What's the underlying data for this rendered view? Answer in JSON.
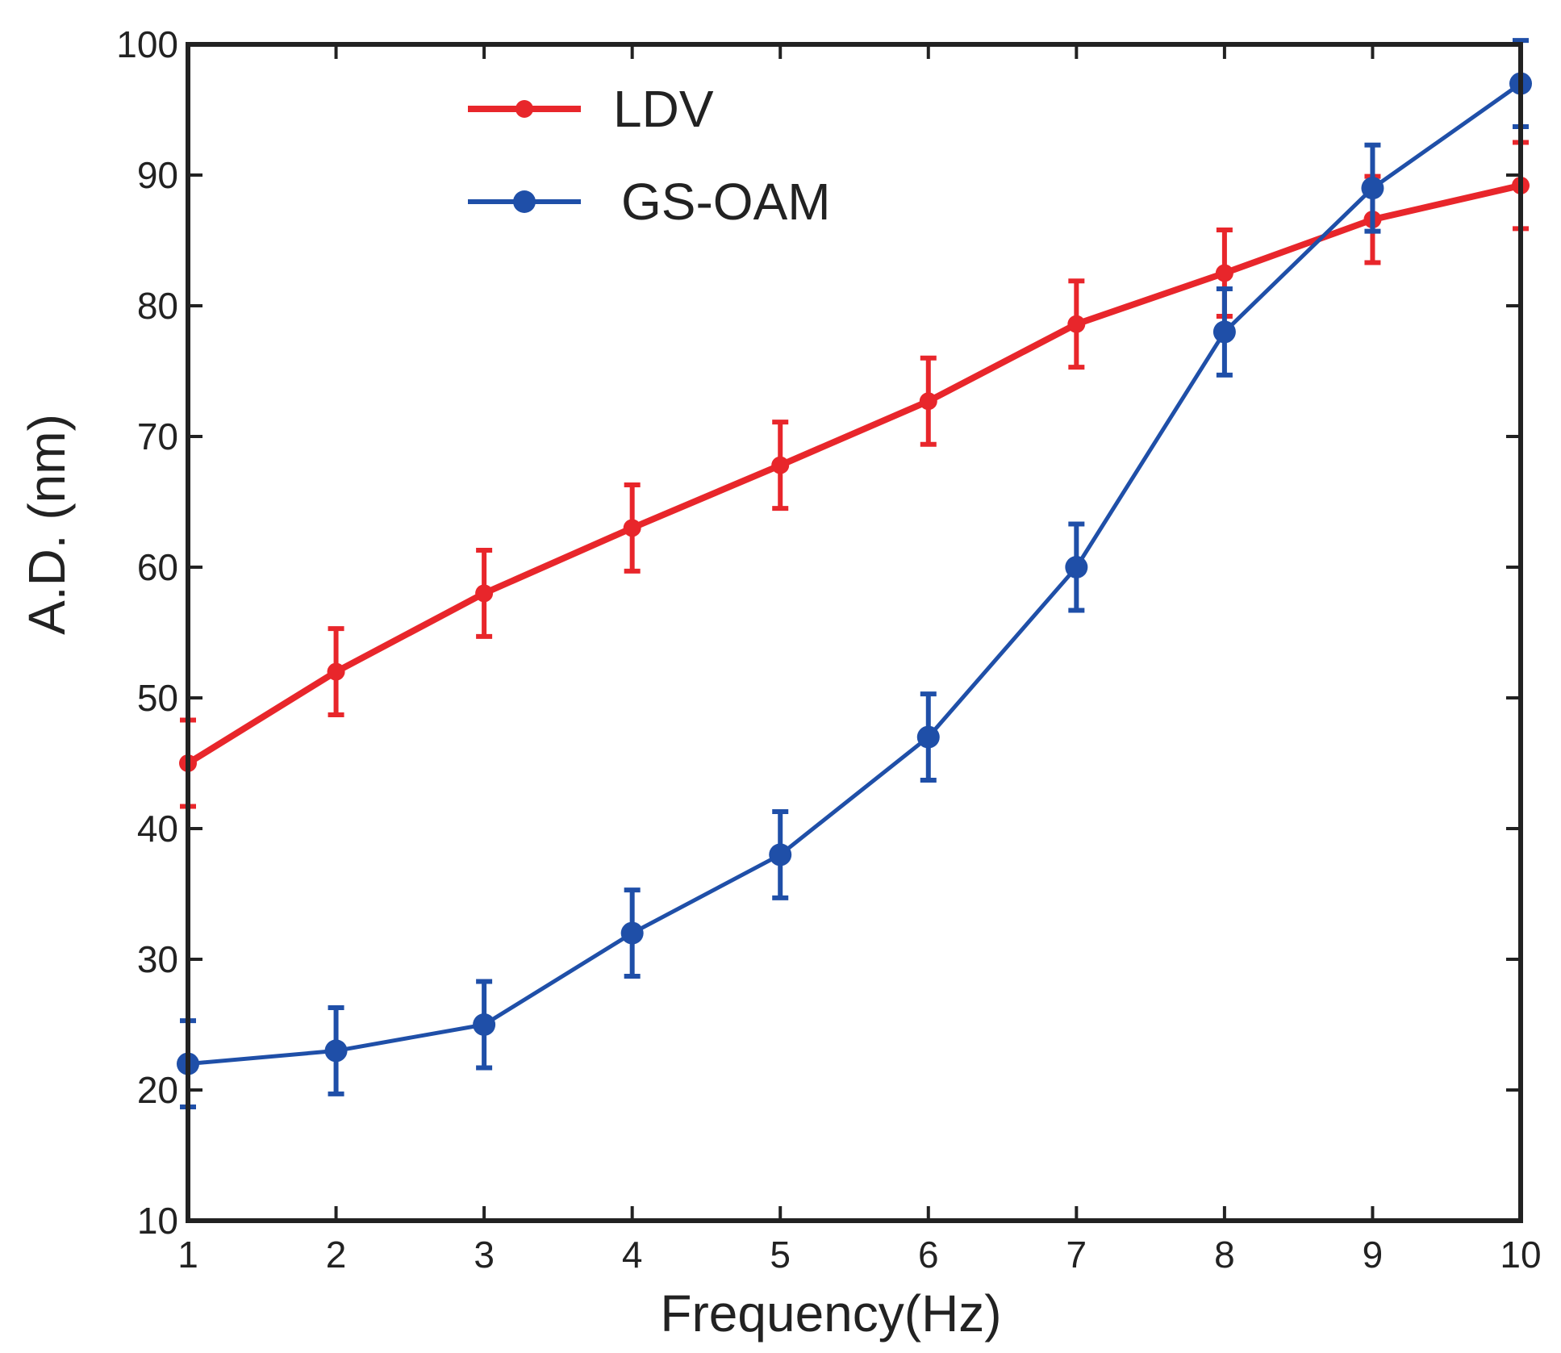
{
  "chart_data": {
    "type": "line",
    "title": "",
    "xlabel": "Frequency(Hz)",
    "ylabel": "A.D. (nm)",
    "xlim": [
      1,
      10
    ],
    "ylim": [
      10,
      100
    ],
    "xticks": [
      1,
      2,
      3,
      4,
      5,
      6,
      7,
      8,
      9,
      10
    ],
    "yticks": [
      10,
      20,
      30,
      40,
      50,
      60,
      70,
      80,
      90,
      100
    ],
    "grid": false,
    "legend_position": "top-center",
    "x": [
      1,
      2,
      3,
      4,
      5,
      6,
      7,
      8,
      9,
      10
    ],
    "series": [
      {
        "name": "LDV",
        "color": "#e8262b",
        "values": [
          45,
          52,
          58,
          63,
          67.8,
          72.7,
          78.6,
          82.5,
          86.6,
          89.2
        ],
        "error": [
          3.3,
          3.3,
          3.3,
          3.3,
          3.3,
          3.3,
          3.3,
          3.3,
          3.3,
          3.3
        ]
      },
      {
        "name": "GS-OAM",
        "color": "#1f4fa8",
        "values": [
          22,
          23,
          25,
          32,
          38,
          47,
          60,
          78,
          89,
          97
        ],
        "error": [
          3.3,
          3.3,
          3.3,
          3.3,
          3.3,
          3.3,
          3.3,
          3.3,
          3.3,
          3.3
        ]
      }
    ]
  }
}
